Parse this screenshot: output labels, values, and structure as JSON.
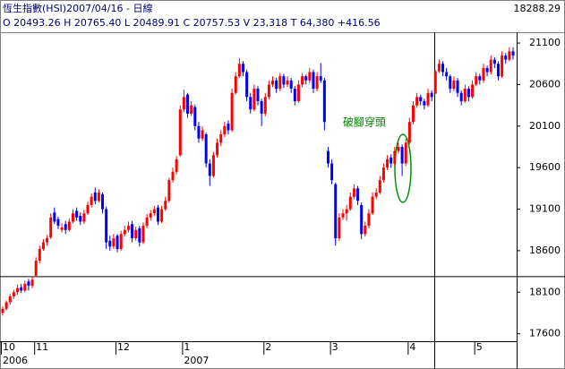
{
  "chart_data": {
    "type": "candlestick",
    "title": "恆生指數(HSI)2007/04/16 - 日線",
    "subtitle": "O 20493.26 H 20765.40 L 20489.91 C 20757.53 V 23,318 T 64,380 +416.56",
    "annotation": "破腳穿頭",
    "crosshair_value": 18288.29,
    "up_color": "#ff0000",
    "down_color": "#0000ff",
    "ylim": [
      17510,
      21230
    ],
    "yticks": [
      17600,
      18100,
      18600,
      19100,
      19600,
      20100,
      20600,
      21100
    ],
    "categories": [
      "10",
      null,
      null,
      null,
      null,
      null,
      null,
      null,
      null,
      "11",
      null,
      null,
      null,
      null,
      null,
      null,
      null,
      null,
      null,
      null,
      null,
      null,
      null,
      null,
      null,
      null,
      null,
      null,
      null,
      null,
      null,
      "12",
      null,
      null,
      null,
      null,
      null,
      null,
      null,
      null,
      null,
      null,
      null,
      null,
      null,
      null,
      null,
      null,
      null,
      "1",
      null,
      null,
      null,
      null,
      null,
      null,
      null,
      null,
      null,
      null,
      null,
      null,
      null,
      null,
      null,
      null,
      null,
      null,
      null,
      null,
      null,
      "2",
      null,
      null,
      null,
      null,
      null,
      null,
      null,
      null,
      null,
      null,
      null,
      null,
      null,
      null,
      null,
      null,
      null,
      "3",
      null,
      null,
      null,
      null,
      null,
      null,
      null,
      null,
      null,
      null,
      null,
      null,
      null,
      null,
      null,
      null,
      null,
      null,
      null,
      null,
      "4",
      null,
      null,
      null,
      null,
      null,
      null,
      null,
      null,
      null,
      null,
      null,
      null,
      null,
      null,
      null,
      null,
      null,
      "5",
      null,
      null,
      null,
      null,
      null,
      null,
      null,
      null,
      null,
      null
    ],
    "category_years": [
      "2006",
      null,
      null,
      null,
      null,
      null,
      null,
      null,
      null,
      null,
      null,
      null,
      null,
      null,
      null,
      null,
      null,
      null,
      null,
      null,
      null,
      null,
      null,
      null,
      null,
      null,
      null,
      null,
      null,
      null,
      null,
      null,
      null,
      null,
      null,
      null,
      null,
      null,
      null,
      null,
      null,
      null,
      null,
      null,
      null,
      null,
      null,
      null,
      null,
      "2007",
      null,
      null,
      null,
      null,
      null,
      null,
      null,
      null,
      null,
      null,
      null,
      null,
      null,
      null,
      null,
      null,
      null,
      null,
      null,
      null,
      null,
      null,
      null,
      null,
      null,
      null,
      null,
      null,
      null,
      null,
      null,
      null,
      null,
      null,
      null,
      null,
      null,
      null,
      null,
      null,
      null,
      null,
      null,
      null,
      null,
      null,
      null,
      null,
      null,
      null,
      null,
      null,
      null,
      null,
      null,
      null,
      null,
      null,
      null,
      null,
      null,
      null,
      null,
      null,
      null,
      null,
      null,
      null,
      null,
      null,
      null,
      null,
      null,
      null,
      null,
      null,
      null,
      null,
      null,
      null,
      null,
      null,
      null,
      null,
      null,
      null,
      null,
      null,
      null
    ],
    "ohlc": [
      [
        17850,
        17930,
        17820,
        17900
      ],
      [
        17900,
        18000,
        17880,
        17980
      ],
      [
        17980,
        18080,
        17950,
        18050
      ],
      [
        18050,
        18130,
        18020,
        18100
      ],
      [
        18100,
        18190,
        18070,
        18150
      ],
      [
        18160,
        18200,
        18090,
        18120
      ],
      [
        18120,
        18240,
        18100,
        18200
      ],
      [
        18230,
        18260,
        18120,
        18180
      ],
      [
        18180,
        18290,
        18150,
        18250
      ],
      [
        18300,
        18520,
        18280,
        18480
      ],
      [
        18480,
        18660,
        18450,
        18620
      ],
      [
        18620,
        18740,
        18600,
        18700
      ],
      [
        18700,
        18790,
        18660,
        18750
      ],
      [
        18760,
        19050,
        18740,
        19000
      ],
      [
        19060,
        19120,
        18920,
        18950
      ],
      [
        18980,
        19010,
        18860,
        18900
      ],
      [
        18850,
        18930,
        18820,
        18880
      ],
      [
        18920,
        18960,
        18800,
        18850
      ],
      [
        18850,
        18990,
        18830,
        18950
      ],
      [
        18950,
        19100,
        18930,
        19050
      ],
      [
        19080,
        19120,
        18960,
        19000
      ],
      [
        19020,
        19060,
        18910,
        18950
      ],
      [
        18950,
        19090,
        18920,
        19050
      ],
      [
        19050,
        19190,
        19030,
        19150
      ],
      [
        19150,
        19290,
        19120,
        19250
      ],
      [
        19300,
        19360,
        19160,
        19200
      ],
      [
        19200,
        19340,
        19180,
        19300
      ],
      [
        19280,
        19300,
        19050,
        19100
      ],
      [
        19100,
        19130,
        18620,
        18700
      ],
      [
        18720,
        18780,
        18600,
        18650
      ],
      [
        18650,
        18800,
        18620,
        18750
      ],
      [
        18780,
        18800,
        18580,
        18620
      ],
      [
        18620,
        18840,
        18600,
        18800
      ],
      [
        18800,
        18900,
        18770,
        18850
      ],
      [
        18850,
        18950,
        18820,
        18900
      ],
      [
        18920,
        18960,
        18700,
        18750
      ],
      [
        18750,
        18890,
        18720,
        18850
      ],
      [
        18870,
        18900,
        18650,
        18700
      ],
      [
        18700,
        18940,
        18680,
        18900
      ],
      [
        18900,
        19040,
        18870,
        19000
      ],
      [
        19000,
        19090,
        18960,
        19050
      ],
      [
        19050,
        19140,
        19020,
        19100
      ],
      [
        19120,
        19150,
        18910,
        18950
      ],
      [
        18950,
        19140,
        18930,
        19100
      ],
      [
        19100,
        19250,
        19080,
        19200
      ],
      [
        19200,
        19480,
        19180,
        19450
      ],
      [
        19450,
        19600,
        19420,
        19550
      ],
      [
        19550,
        19740,
        19520,
        19700
      ],
      [
        19750,
        20350,
        19730,
        20300
      ],
      [
        20300,
        20540,
        20270,
        20450
      ],
      [
        20480,
        20500,
        20200,
        20250
      ],
      [
        20250,
        20400,
        20220,
        20350
      ],
      [
        20330,
        20360,
        20050,
        20100
      ],
      [
        20100,
        20150,
        19900,
        19950
      ],
      [
        19950,
        20100,
        19920,
        20050
      ],
      [
        20000,
        20020,
        19600,
        19650
      ],
      [
        19650,
        19700,
        19380,
        19500
      ],
      [
        19500,
        19790,
        19480,
        19750
      ],
      [
        19750,
        19950,
        19720,
        19900
      ],
      [
        19900,
        20050,
        19860,
        20000
      ],
      [
        20000,
        20150,
        19970,
        20100
      ],
      [
        20130,
        20170,
        20000,
        20050
      ],
      [
        20050,
        20550,
        20030,
        20500
      ],
      [
        20500,
        20750,
        20480,
        20700
      ],
      [
        20700,
        20920,
        20680,
        20850
      ],
      [
        20850,
        20880,
        20700,
        20750
      ],
      [
        20750,
        20780,
        20400,
        20450
      ],
      [
        20450,
        20500,
        20250,
        20300
      ],
      [
        20300,
        20600,
        20280,
        20550
      ],
      [
        20550,
        20580,
        20350,
        20400
      ],
      [
        20400,
        20430,
        20100,
        20250
      ],
      [
        20250,
        20500,
        20220,
        20450
      ],
      [
        20450,
        20650,
        20420,
        20600
      ],
      [
        20600,
        20700,
        20570,
        20650
      ],
      [
        20650,
        20680,
        20500,
        20550
      ],
      [
        20550,
        20740,
        20520,
        20700
      ],
      [
        20700,
        20730,
        20560,
        20600
      ],
      [
        20600,
        20700,
        20570,
        20650
      ],
      [
        20650,
        20680,
        20500,
        20550
      ],
      [
        20550,
        20580,
        20350,
        20400
      ],
      [
        20400,
        20650,
        20380,
        20600
      ],
      [
        20600,
        20740,
        20570,
        20700
      ],
      [
        20700,
        20720,
        20600,
        20650
      ],
      [
        20650,
        20800,
        20620,
        20750
      ],
      [
        20750,
        20780,
        20500,
        20550
      ],
      [
        20550,
        20750,
        20520,
        20700
      ],
      [
        20700,
        20860,
        20620,
        20650
      ],
      [
        20650,
        20680,
        20050,
        20150
      ],
      [
        19800,
        19850,
        19600,
        19650
      ],
      [
        19650,
        19700,
        19400,
        19450
      ],
      [
        19400,
        19420,
        18660,
        18750
      ],
      [
        18750,
        19050,
        18720,
        19000
      ],
      [
        19000,
        19100,
        18970,
        19050
      ],
      [
        19050,
        19150,
        18960,
        19100
      ],
      [
        19100,
        19300,
        19080,
        19250
      ],
      [
        19250,
        19400,
        19220,
        19350
      ],
      [
        19350,
        19380,
        19150,
        19200
      ],
      [
        19150,
        19180,
        18740,
        18800
      ],
      [
        18800,
        18950,
        18770,
        18900
      ],
      [
        18900,
        19100,
        18870,
        19050
      ],
      [
        19050,
        19300,
        19030,
        19250
      ],
      [
        19250,
        19350,
        19220,
        19300
      ],
      [
        19300,
        19500,
        19280,
        19450
      ],
      [
        19450,
        19650,
        19420,
        19600
      ],
      [
        19600,
        19750,
        19570,
        19700
      ],
      [
        19720,
        19760,
        19600,
        19650
      ],
      [
        19650,
        19850,
        19620,
        19800
      ],
      [
        19800,
        19900,
        19770,
        19850
      ],
      [
        19850,
        19880,
        19500,
        19650
      ],
      [
        19650,
        19950,
        19620,
        19900
      ],
      [
        19900,
        20200,
        19880,
        20150
      ],
      [
        20150,
        20400,
        20120,
        20350
      ],
      [
        20350,
        20500,
        20320,
        20450
      ],
      [
        20450,
        20480,
        20350,
        20400
      ],
      [
        20400,
        20430,
        20300,
        20350
      ],
      [
        20350,
        20550,
        20330,
        20500
      ],
      [
        20500,
        20530,
        20400,
        20450
      ],
      [
        20490,
        20770,
        20490,
        20760
      ],
      [
        20760,
        20900,
        20740,
        20850
      ],
      [
        20850,
        20880,
        20700,
        20750
      ],
      [
        20750,
        20800,
        20650,
        20700
      ],
      [
        20700,
        20720,
        20500,
        20550
      ],
      [
        20550,
        20700,
        20520,
        20650
      ],
      [
        20650,
        20680,
        20450,
        20500
      ],
      [
        20500,
        20530,
        20350,
        20400
      ],
      [
        20400,
        20600,
        20380,
        20550
      ],
      [
        20550,
        20580,
        20400,
        20450
      ],
      [
        20450,
        20650,
        20430,
        20600
      ],
      [
        20600,
        20750,
        20580,
        20700
      ],
      [
        20700,
        20730,
        20600,
        20650
      ],
      [
        20650,
        20850,
        20620,
        20800
      ],
      [
        20800,
        20830,
        20700,
        20750
      ],
      [
        20750,
        20950,
        20720,
        20900
      ],
      [
        20900,
        20930,
        20800,
        20850
      ],
      [
        20850,
        20880,
        20650,
        20700
      ],
      [
        20700,
        21000,
        20680,
        20950
      ],
      [
        20950,
        20980,
        20850,
        20900
      ],
      [
        20900,
        21050,
        20880,
        21000
      ],
      [
        21000,
        21050,
        20900,
        20950
      ]
    ]
  }
}
